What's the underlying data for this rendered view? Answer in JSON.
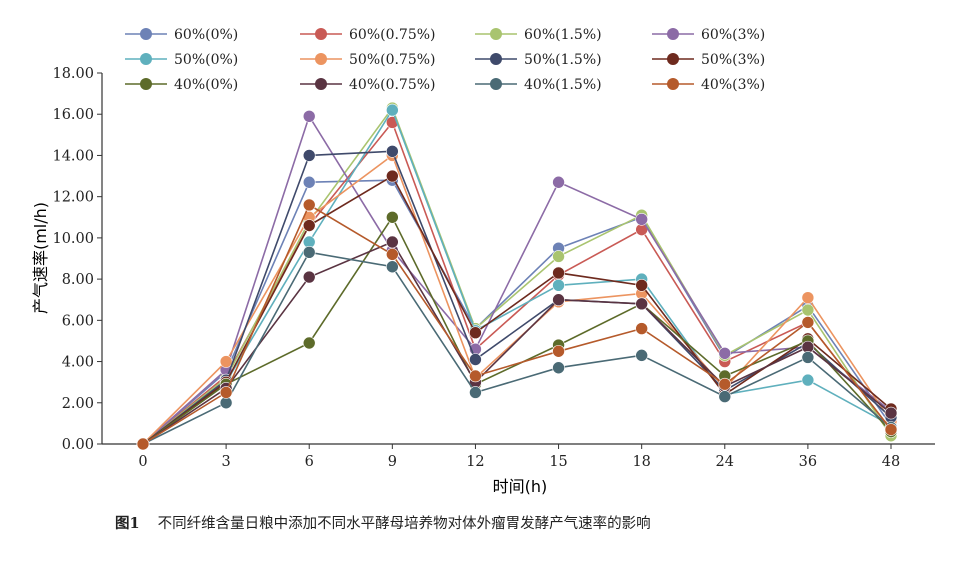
{
  "chart_data": {
    "type": "line",
    "title": "",
    "xlabel": "时间(h)",
    "ylabel": "产气速率(ml/h)",
    "categories": [
      "0",
      "3",
      "6",
      "9",
      "12",
      "15",
      "18",
      "24",
      "36",
      "48"
    ],
    "ylim": [
      0,
      18
    ],
    "yticks": [
      "0.00",
      "2.00",
      "4.00",
      "6.00",
      "8.00",
      "10.00",
      "12.00",
      "14.00",
      "16.00",
      "18.00"
    ],
    "legend_position": "top",
    "series": [
      {
        "name": "60%(0%)",
        "color": "#6d82b6",
        "values": [
          0,
          3.5,
          12.7,
          12.8,
          5.6,
          9.5,
          11.0,
          4.2,
          6.7,
          0.9
        ]
      },
      {
        "name": "60%(0.75%)",
        "color": "#c95a55",
        "values": [
          0,
          3.3,
          10.6,
          15.6,
          4.6,
          8.2,
          10.4,
          4.0,
          5.9,
          0.7
        ]
      },
      {
        "name": "60%(1.5%)",
        "color": "#a9c46f",
        "values": [
          0,
          3.2,
          10.8,
          16.3,
          5.6,
          9.1,
          11.1,
          4.3,
          6.5,
          0.4
        ]
      },
      {
        "name": "60%(3%)",
        "color": "#8c6ba6",
        "values": [
          0,
          3.6,
          15.9,
          9.4,
          4.6,
          12.7,
          10.9,
          4.4,
          4.7,
          1.6
        ]
      },
      {
        "name": "50%(0%)",
        "color": "#5fb0bd",
        "values": [
          0,
          3.0,
          9.8,
          16.2,
          5.5,
          7.7,
          8.0,
          2.4,
          3.1,
          0.9
        ]
      },
      {
        "name": "50%(0.75%)",
        "color": "#ec9460",
        "values": [
          0,
          4.0,
          11.0,
          14.0,
          3.2,
          6.9,
          7.3,
          2.7,
          7.1,
          1.1
        ]
      },
      {
        "name": "50%(1.5%)",
        "color": "#3f4a6b",
        "values": [
          0,
          3.1,
          14.0,
          14.2,
          4.1,
          7.0,
          6.8,
          2.6,
          4.9,
          1.3
        ]
      },
      {
        "name": "50%(3%)",
        "color": "#6e2a1e",
        "values": [
          0,
          3.0,
          10.6,
          13.0,
          5.4,
          8.3,
          7.7,
          2.4,
          5.1,
          1.7
        ]
      },
      {
        "name": "40%(0%)",
        "color": "#5d6b2a",
        "values": [
          0,
          2.9,
          4.9,
          11.0,
          2.9,
          4.8,
          6.8,
          3.3,
          5.0,
          0.6
        ]
      },
      {
        "name": "40%(0.75%)",
        "color": "#5a3442",
        "values": [
          0,
          2.7,
          8.1,
          9.8,
          3.0,
          7.0,
          6.8,
          2.8,
          4.7,
          1.5
        ]
      },
      {
        "name": "40%(1.5%)",
        "color": "#4a6a75",
        "values": [
          0,
          2.0,
          9.3,
          8.6,
          2.5,
          3.7,
          4.3,
          2.3,
          4.2,
          0.8
        ]
      },
      {
        "name": "40%(3%)",
        "color": "#b55a2b",
        "values": [
          0,
          2.5,
          11.6,
          9.2,
          3.3,
          4.5,
          5.6,
          2.9,
          5.9,
          0.7
        ]
      }
    ]
  },
  "caption": {
    "label": "图1",
    "text": "不同纤维含量日粮中添加不同水平酵母培养物对体外瘤胃发酵产气速率的影响"
  }
}
